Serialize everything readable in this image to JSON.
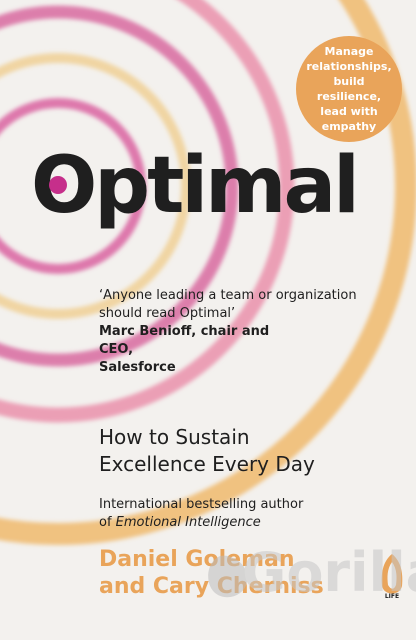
{
  "book": {
    "title": "Optimal",
    "badge": "Manage\nrelationships,\nbuild resilience,\nlead with\nempathy",
    "quote": "‘Anyone leading a team or organization should read Optimal’",
    "quote_attribution": "Marc Benioff, chair and CEO,\nSalesforce",
    "subtitle": "How to Sustain\nExcellence Every Day",
    "author_note_prefix": "International bestselling author\nof ",
    "author_note_book": "Emotional Intelligence",
    "authors": "Daniel Goleman\nand Cary Cherniss",
    "publisher_mark": "LIFE",
    "watermark": "Gorilla"
  },
  "colors": {
    "background": "#f3f1ee",
    "text": "#1f1f1f",
    "accent_orange": "#e9a45a",
    "accent_pink": "#df6aa3",
    "accent_magenta": "#c62f8b"
  }
}
